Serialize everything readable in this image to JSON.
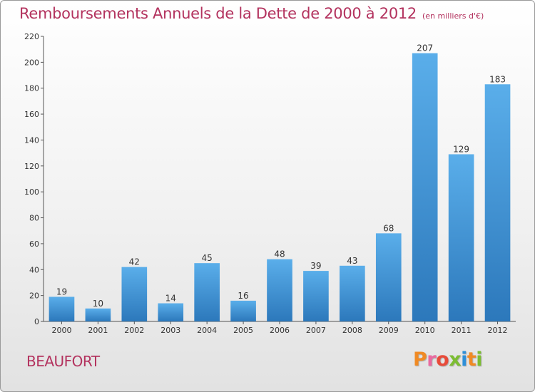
{
  "chart_data": {
    "type": "bar",
    "title": "Remboursements Annuels de la Dette de 2000 à 2012",
    "subtitle": "(en milliers d'€)",
    "categories": [
      "2000",
      "2001",
      "2002",
      "2003",
      "2004",
      "2005",
      "2006",
      "2007",
      "2008",
      "2009",
      "2010",
      "2011",
      "2012"
    ],
    "values": [
      19,
      10,
      42,
      14,
      45,
      16,
      48,
      39,
      43,
      68,
      207,
      129,
      183
    ],
    "xlabel": "",
    "ylabel": "",
    "ylim": [
      0,
      220
    ],
    "yticks": [
      0,
      20,
      40,
      60,
      80,
      100,
      120,
      140,
      160,
      180,
      200,
      220
    ],
    "grid": false,
    "bar_color": "#3d8fd6"
  },
  "footer": {
    "place": "BEAUFORT",
    "logo": "Proxiti"
  },
  "colors": {
    "title": "#b3325e",
    "logo_letters": [
      "#f08a24",
      "#ea6aa0",
      "#e84b3a",
      "#7cbd32",
      "#2e8fd8",
      "#f08a24",
      "#7cbd32"
    ]
  }
}
